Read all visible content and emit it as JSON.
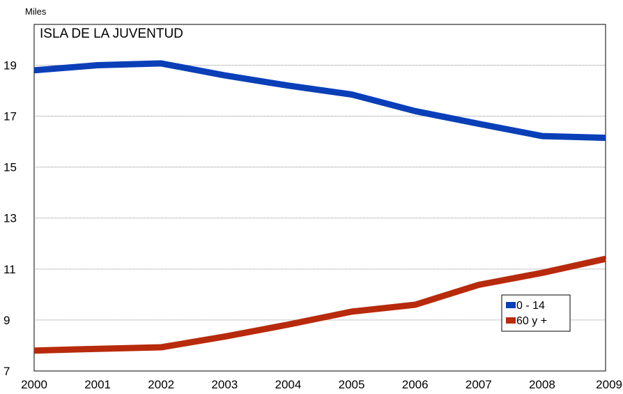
{
  "chart_data": {
    "type": "line",
    "unit_label": "Miles",
    "inner_title": "ISLA DE LA JUVENTUD",
    "x": [
      "2000",
      "2001",
      "2002",
      "2003",
      "2004",
      "2005",
      "2006",
      "2007",
      "2008",
      "2009"
    ],
    "yticks": [
      7,
      9,
      11,
      13,
      15,
      17,
      19
    ],
    "ylim": [
      7,
      20.6
    ],
    "grid": true,
    "legend_position": "bottom-right",
    "series": [
      {
        "name": "0 - 14",
        "color": "#0a3fb8",
        "values": [
          18.8,
          19.0,
          19.07,
          18.6,
          18.2,
          17.85,
          17.2,
          16.7,
          16.22,
          16.15
        ]
      },
      {
        "name": "60 y +",
        "color": "#b82a0c",
        "values": [
          7.8,
          7.87,
          7.93,
          8.35,
          8.82,
          9.33,
          9.6,
          10.38,
          10.85,
          11.4
        ]
      }
    ]
  }
}
